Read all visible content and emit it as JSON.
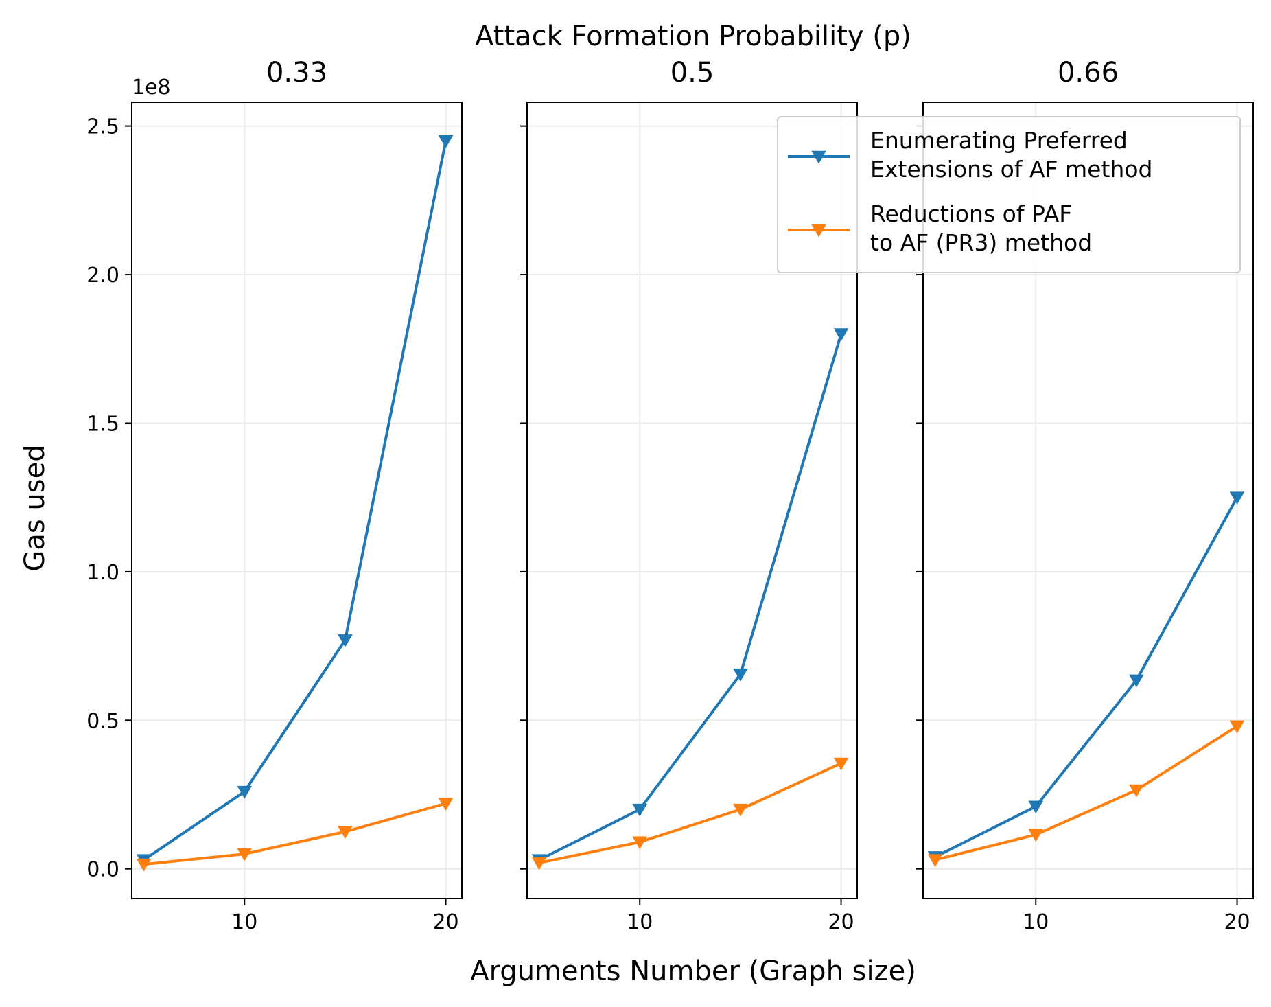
{
  "chart_data": {
    "type": "line",
    "title": "Attack Formation Probability (p)",
    "xlabel": "Arguments Number (Graph size)",
    "ylabel": "Gas used",
    "y_offset_label": "1e8",
    "x_ticks": [
      10,
      20
    ],
    "y_ticks": [
      0.0,
      0.5,
      1.0,
      1.5,
      2.0,
      2.5
    ],
    "y_tick_labels": [
      "0.0",
      "0.5",
      "1.0",
      "1.5",
      "2.0",
      "2.5"
    ],
    "xlim": [
      4.4,
      20.8
    ],
    "ylim": [
      -0.1,
      2.58
    ],
    "grid": true,
    "legend_position": "upper-right",
    "marker": "triangle-down",
    "colors": {
      "enumerating": "#1f77b4",
      "reductions": "#ff7f0e"
    },
    "legend": [
      {
        "series": "enumerating",
        "line1": "Enumerating Preferred",
        "line2": "Extensions of AF method"
      },
      {
        "series": "reductions",
        "line1": "Reductions of PAF",
        "line2": "to AF (PR3) method"
      }
    ],
    "panels": [
      {
        "title": "0.33",
        "x": [
          5,
          10,
          15,
          20
        ],
        "series": [
          {
            "key": "enumerating",
            "values": [
              0.03,
              0.26,
              0.77,
              2.45
            ]
          },
          {
            "key": "reductions",
            "values": [
              0.015,
              0.05,
              0.125,
              0.22
            ]
          }
        ]
      },
      {
        "title": "0.5",
        "x": [
          5,
          10,
          15,
          20
        ],
        "series": [
          {
            "key": "enumerating",
            "values": [
              0.03,
              0.2,
              0.655,
              1.8
            ]
          },
          {
            "key": "reductions",
            "values": [
              0.02,
              0.09,
              0.2,
              0.355
            ]
          }
        ]
      },
      {
        "title": "0.66",
        "x": [
          5,
          10,
          15,
          20
        ],
        "series": [
          {
            "key": "enumerating",
            "values": [
              0.04,
              0.21,
              0.635,
              1.25
            ]
          },
          {
            "key": "reductions",
            "values": [
              0.03,
              0.115,
              0.265,
              0.48
            ]
          }
        ]
      }
    ]
  }
}
